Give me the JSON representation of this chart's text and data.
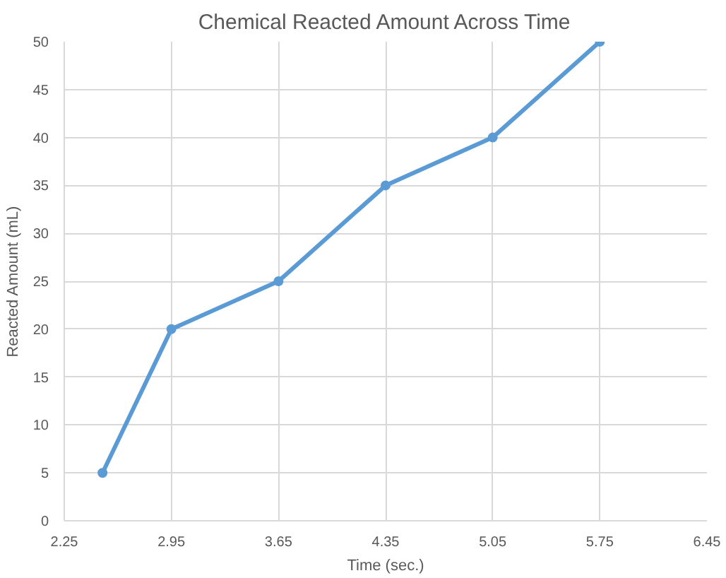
{
  "chart_data": {
    "type": "line",
    "title": "Chemical Reacted Amount Across Time",
    "xlabel": "Time (sec.)",
    "ylabel": "Reacted Amount (mL)",
    "x": [
      2.5,
      2.95,
      3.65,
      4.35,
      5.05,
      5.75
    ],
    "series": [
      {
        "color": "#5b9bd5",
        "values": [
          5,
          20,
          25,
          35,
          40,
          50
        ]
      }
    ],
    "xlim": [
      2.25,
      6.45
    ],
    "xticks": [
      2.25,
      2.95,
      3.65,
      4.35,
      5.05,
      5.75,
      6.45
    ],
    "ylim": [
      0,
      50
    ],
    "yticks": [
      0,
      5,
      10,
      15,
      20,
      25,
      30,
      35,
      40,
      45,
      50
    ],
    "grid": true,
    "marker": "circle",
    "line_style": "solid"
  }
}
